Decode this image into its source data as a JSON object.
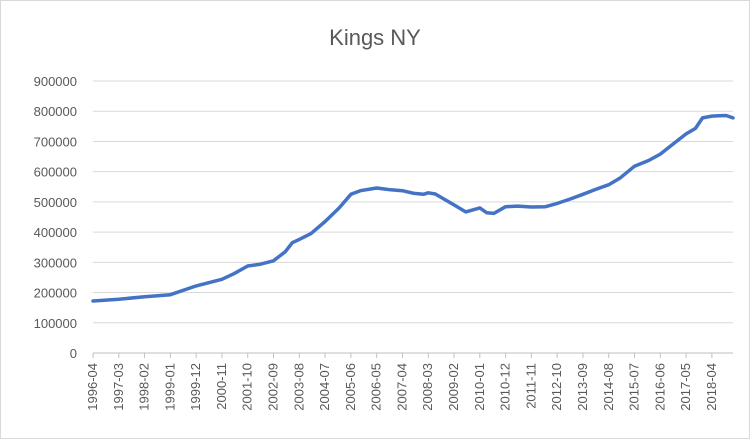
{
  "chart_data": {
    "type": "line",
    "title": "Kings NY",
    "xlabel": "",
    "ylabel": "",
    "ylim": [
      0,
      900000
    ],
    "y_ticks": [
      0,
      100000,
      200000,
      300000,
      400000,
      500000,
      600000,
      700000,
      800000,
      900000
    ],
    "y_tick_labels": [
      "0",
      "100000",
      "200000",
      "300000",
      "400000",
      "500000",
      "600000",
      "700000",
      "800000",
      "900000"
    ],
    "x_range": [
      "1996-04",
      "2019-01"
    ],
    "x_tick_labels": [
      "1996-04",
      "1997-03",
      "1998-02",
      "1999-01",
      "1999-12",
      "2000-11",
      "2001-10",
      "2002-09",
      "2003-08",
      "2004-07",
      "2005-06",
      "2006-05",
      "2007-04",
      "2008-03",
      "2009-02",
      "2010-01",
      "2010-12",
      "2011-11",
      "2012-10",
      "2013-09",
      "2014-08",
      "2015-07",
      "2016-06",
      "2017-05",
      "2018-04"
    ],
    "grid": true,
    "legend": "none",
    "series": [
      {
        "color": "#4472c4",
        "x": [
          "1996-04",
          "1997-03",
          "1998-02",
          "1999-01",
          "1999-12",
          "2000-11",
          "2001-04",
          "2001-10",
          "2002-03",
          "2002-09",
          "2003-02",
          "2003-05",
          "2003-08",
          "2004-01",
          "2004-07",
          "2005-01",
          "2005-06",
          "2005-10",
          "2006-05",
          "2006-11",
          "2007-04",
          "2007-09",
          "2008-01",
          "2008-03",
          "2008-06",
          "2009-02",
          "2009-07",
          "2010-01",
          "2010-04",
          "2010-07",
          "2010-12",
          "2011-05",
          "2011-11",
          "2012-05",
          "2012-10",
          "2013-03",
          "2013-09",
          "2014-02",
          "2014-08",
          "2015-01",
          "2015-07",
          "2016-01",
          "2016-06",
          "2016-12",
          "2017-05",
          "2017-09",
          "2017-12",
          "2018-04",
          "2018-07",
          "2018-10",
          "2019-01"
        ],
        "y": [
          172000,
          178000,
          186000,
          193000,
          222000,
          244000,
          262000,
          288000,
          293000,
          305000,
          335000,
          365000,
          376000,
          395000,
          435000,
          480000,
          525000,
          537000,
          546000,
          540000,
          537000,
          528000,
          525000,
          530000,
          526000,
          490000,
          467000,
          480000,
          464000,
          462000,
          484000,
          486000,
          483000,
          484000,
          495000,
          508000,
          525000,
          540000,
          557000,
          580000,
          618000,
          637000,
          658000,
          695000,
          725000,
          743000,
          778000,
          784000,
          785000,
          786000,
          778000
        ]
      }
    ]
  }
}
